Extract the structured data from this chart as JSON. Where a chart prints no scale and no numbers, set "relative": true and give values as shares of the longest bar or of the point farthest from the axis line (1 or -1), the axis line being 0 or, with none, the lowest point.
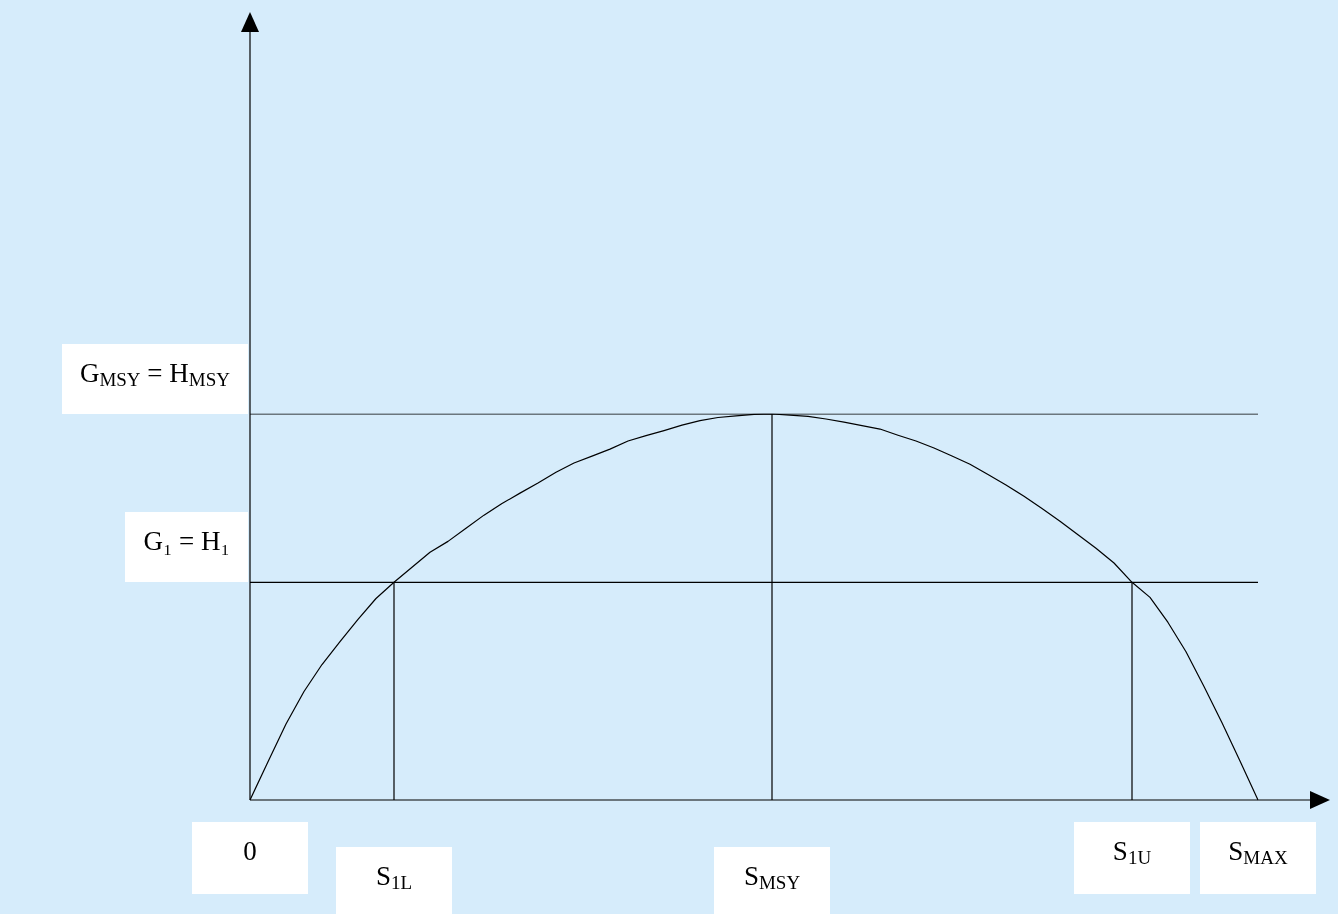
{
  "chart_data": {
    "type": "line",
    "relative": true,
    "categories": [
      "0",
      null,
      null,
      null,
      null,
      null,
      null,
      null,
      "S$_{1L}$",
      null,
      null,
      null,
      null,
      null,
      null,
      null,
      null,
      null,
      null,
      null,
      null,
      null,
      null,
      null,
      null,
      null,
      null,
      null,
      null,
      "S$_{MSY}$",
      null,
      null,
      null,
      null,
      null,
      null,
      null,
      null,
      null,
      null,
      null,
      null,
      null,
      null,
      null,
      null,
      null,
      null,
      null,
      "S$_{1U}$",
      null,
      null,
      null,
      null,
      null,
      null,
      "S$_{MAX}$"
    ],
    "series": [
      {
        "color": "#000000",
        "values": [
          0,
          0.099,
          0.197,
          0.281,
          0.351,
          0.41,
          0.468,
          0.522,
          0.564,
          0.603,
          0.642,
          0.67,
          0.704,
          0.738,
          0.768,
          0.795,
          0.821,
          0.849,
          0.873,
          0.891,
          0.909,
          0.93,
          0.944,
          0.957,
          0.971,
          0.983,
          0.991,
          0.995,
          0.999,
          1,
          0.997,
          0.994,
          0.987,
          0.979,
          0.97,
          0.961,
          0.945,
          0.93,
          0.912,
          0.891,
          0.87,
          0.843,
          0.816,
          0.787,
          0.755,
          0.722,
          0.687,
          0.652,
          0.614,
          0.564,
          0.525,
          0.46,
          0.384,
          0.294,
          0.2,
          0.101,
          0
        ]
      },
      {
        "type": "line",
        "name": "G$_{MSY}$  = H$_{MSY}$",
        "color": "#000000",
        "values": [
          1,
          1,
          1,
          1,
          1,
          1,
          1,
          1,
          1,
          1,
          1,
          1,
          1,
          1,
          1,
          1,
          1,
          1,
          1,
          1,
          1,
          1,
          1,
          1,
          1,
          1,
          1,
          1,
          1,
          1,
          1,
          1,
          1,
          1,
          1,
          1,
          1,
          1,
          1,
          1,
          1,
          1,
          1,
          1,
          1,
          1,
          1,
          1,
          1,
          1,
          1,
          1,
          1,
          1,
          1,
          1,
          1
        ]
      },
      {
        "type": "line",
        "name": "G₁ = H₁",
        "color": "#000000",
        "values": [
          0.564,
          0.564,
          0.564,
          0.564,
          0.564,
          0.564,
          0.564,
          0.564,
          0.564,
          0.564,
          0.564,
          0.564,
          0.564,
          0.564,
          0.564,
          0.564,
          0.564,
          0.564,
          0.564,
          0.564,
          0.564,
          0.564,
          0.564,
          0.564,
          0.564,
          0.564,
          0.564,
          0.564,
          0.564,
          0.564,
          0.564,
          0.564,
          0.564,
          0.564,
          0.564,
          0.564,
          0.564,
          0.564,
          0.564,
          0.564,
          0.564,
          0.564,
          0.564,
          0.564,
          0.564,
          0.564,
          0.564,
          0.564,
          0.564,
          0.564,
          0.564,
          0.564,
          0.564,
          0.564,
          0.564,
          0.564,
          0.564
        ]
      }
    ],
    "ref_lines": [
      {
        "axis": "x",
        "value": "S$_{1L}$",
        "color": "#000000"
      },
      {
        "axis": "x",
        "value": "S$_{MSY}$",
        "color": "#000000"
      },
      {
        "axis": "x",
        "value": "S$_{1U}$",
        "color": "#000000"
      }
    ],
    "marker": "none",
    "line_style": "solid"
  }
}
